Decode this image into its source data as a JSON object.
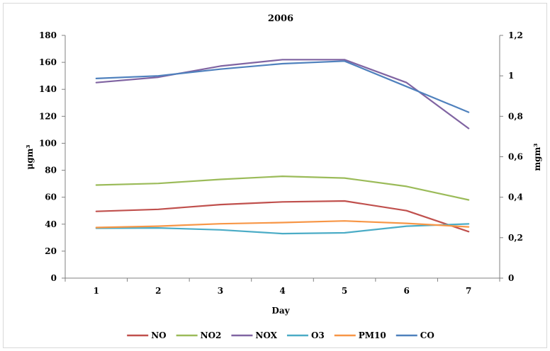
{
  "chart_data": {
    "type": "line",
    "title": "2006",
    "xlabel": "Day",
    "ylabel_left": "μgm³",
    "ylabel_right": "mgm³",
    "x": [
      1,
      2,
      3,
      4,
      5,
      6,
      7
    ],
    "x_ticks": [
      "1",
      "2",
      "3",
      "4",
      "5",
      "6",
      "7"
    ],
    "ylim_left": [
      0,
      180
    ],
    "yticks_left": [
      "0",
      "20",
      "40",
      "60",
      "80",
      "100",
      "120",
      "140",
      "160",
      "180"
    ],
    "ylim_right": [
      0,
      1.2
    ],
    "yticks_right": [
      "0",
      "0,2",
      "0,4",
      "0,6",
      "0,8",
      "1",
      "1,2"
    ],
    "grid": false,
    "legend_position": "bottom",
    "series": [
      {
        "name": "NO",
        "axis": "left",
        "color": "#c0504d",
        "values": [
          49.5,
          51,
          54.5,
          56.5,
          57.2,
          50,
          34.5
        ]
      },
      {
        "name": "NO2",
        "axis": "left",
        "color": "#9bbb59",
        "values": [
          69,
          70.2,
          73.2,
          75.5,
          74.2,
          68,
          58
        ]
      },
      {
        "name": "NOX",
        "axis": "left",
        "color": "#8064a2",
        "values": [
          145,
          149,
          157.2,
          162,
          162,
          145,
          111
        ]
      },
      {
        "name": "O3",
        "axis": "left",
        "color": "#4bacc6",
        "values": [
          37,
          37.2,
          35.8,
          33,
          33.6,
          38.5,
          40.2
        ]
      },
      {
        "name": "PM10",
        "axis": "left",
        "color": "#f79646",
        "values": [
          37.5,
          38.5,
          40.3,
          41.2,
          42.4,
          40.6,
          38
        ]
      },
      {
        "name": "CO",
        "axis": "right",
        "color": "#4f81bd",
        "values": [
          0.987,
          1.0,
          1.033,
          1.06,
          1.073,
          0.947,
          0.82
        ]
      }
    ]
  }
}
